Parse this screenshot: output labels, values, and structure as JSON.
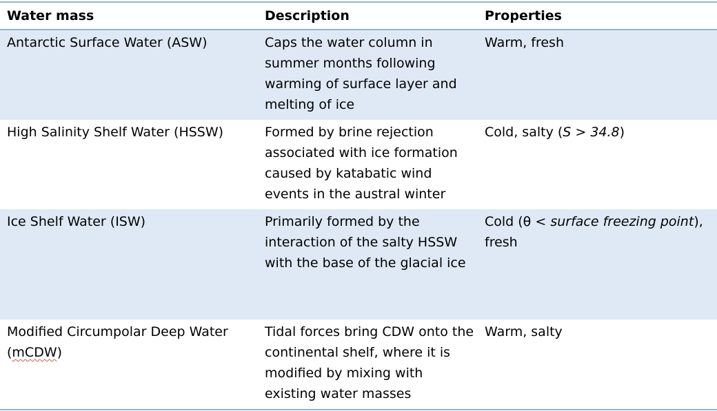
{
  "headers": {
    "water_mass": "Water mass",
    "description": "Description",
    "properties": "Properties"
  },
  "rows": [
    {
      "water_mass": "Antarctic Surface Water (ASW)",
      "description": "Caps the water column in summer months following warming of surface layer and melting of ice",
      "properties": "Warm, fresh"
    },
    {
      "water_mass": "High Salinity Shelf Water (HSSW)",
      "description": "Formed by brine rejection associated with ice formation caused by katabatic wind events in the austral winter",
      "properties_prefix": "Cold, salty (",
      "properties_italic": "S > 34.8",
      "properties_suffix": ")"
    },
    {
      "water_mass": "Ice Shelf Water (ISW)",
      "description": "Primarily formed by the interaction of the salty HSSW with the base of the glacial ice",
      "properties_prefix": "Cold (θ < ",
      "properties_italic": "surface freezing point",
      "properties_suffix": "), fresh"
    },
    {
      "water_mass_prefix": "Modified Circumpolar Deep Water (",
      "water_mass_squiggle": "mCDW",
      "water_mass_suffix": ")",
      "description": "Tidal forces bring CDW onto the continental shelf, where it is modified by mixing with existing water masses",
      "properties": "Warm, salty"
    }
  ],
  "colors": {
    "rule": "#8fb4d9",
    "shaded_row": "#dee9f5",
    "spellcheck_underline": "#d9534f"
  }
}
